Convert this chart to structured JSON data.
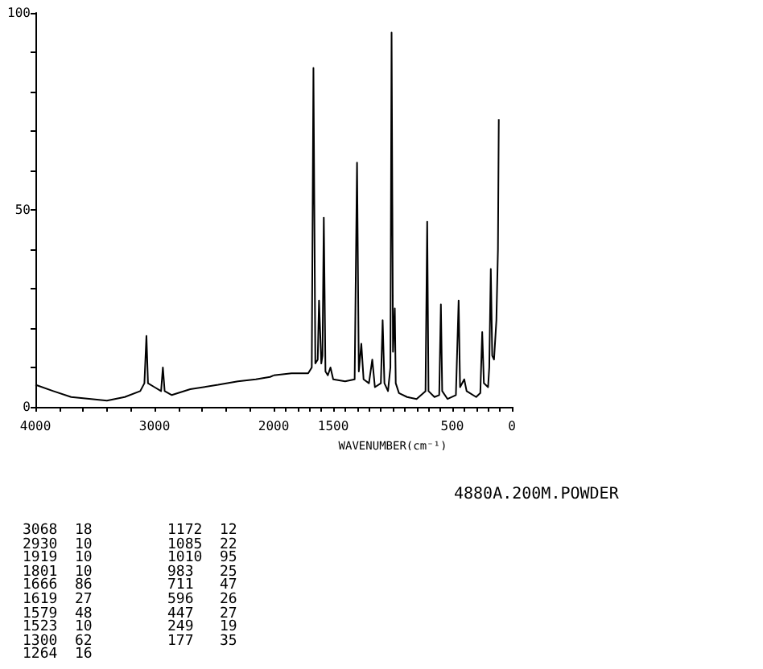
{
  "chart_data": [
    {
      "type": "line",
      "x": [
        4000,
        3850,
        3700,
        3532,
        3400,
        3250,
        3120,
        3085,
        3068,
        3055,
        3000,
        2945,
        2930,
        2915,
        2855,
        2700,
        2466,
        2300,
        2150,
        2030,
        2000
      ],
      "series": [
        {
          "color": "#000000",
          "values": [
            5.6,
            4,
            2.5,
            2,
            1.6,
            2.5,
            4,
            6,
            18,
            6,
            5,
            4,
            10,
            4,
            3,
            4.5,
            5.6,
            6.5,
            7,
            7.6,
            8
          ]
        }
      ],
      "xlim": [
        4000,
        2000
      ],
      "xticks": [
        4000,
        {
          "value": 3800,
          "label": null
        },
        {
          "value": 3600,
          "label": null
        },
        {
          "value": 3400,
          "label": null
        },
        {
          "value": 3200,
          "label": null
        },
        3000,
        {
          "value": 2800,
          "label": null
        },
        {
          "value": 2600,
          "label": null
        },
        {
          "value": 2400,
          "label": null
        },
        {
          "value": 2200,
          "label": null
        },
        2000
      ],
      "ylim": [
        0,
        100
      ],
      "yticks": [
        0,
        {
          "value": 10,
          "label": null
        },
        {
          "value": 20,
          "label": null
        },
        {
          "value": 30,
          "label": null
        },
        {
          "value": 40,
          "label": null
        },
        50,
        {
          "value": 60,
          "label": null
        },
        {
          "value": 70,
          "label": null
        },
        {
          "value": 80,
          "label": null
        },
        {
          "value": 90,
          "label": null
        },
        100
      ],
      "marker": "none",
      "grid": false,
      "annotations": [
        "4880A.200M.POWDER",
        "3068  18",
        "2930  10",
        "1919  10",
        "1801  10",
        "1666  86",
        "1619  27",
        "1579  48",
        "1523  10",
        "1300  62",
        "1264  16",
        "1172  12",
        "1085  22",
        "1010  95",
        "983   25",
        "711   47",
        "596   26",
        "447   27",
        "249   19",
        "177   35"
      ]
    },
    {
      "type": "line",
      "x": [
        2000,
        1850,
        1710,
        1680,
        1666,
        1650,
        1630,
        1619,
        1600,
        1590,
        1579,
        1565,
        1545,
        1523,
        1500,
        1400,
        1320,
        1300,
        1285,
        1264,
        1245,
        1200,
        1172,
        1150,
        1100,
        1085,
        1070,
        1040,
        1020,
        1010,
        998,
        983,
        975,
        948,
        880,
        800,
        725,
        711,
        700,
        650,
        610,
        596,
        585,
        540,
        470,
        447,
        435,
        400,
        380,
        300,
        265,
        249,
        235,
        200,
        190,
        177,
        165,
        150,
        130,
        117,
        110
      ],
      "series": [
        {
          "color": "#000000",
          "values": [
            8,
            8.5,
            8.5,
            10,
            86,
            11,
            12,
            27,
            11,
            13,
            48,
            9,
            8,
            10,
            7,
            6.5,
            7,
            62,
            9,
            16,
            7,
            6,
            12,
            5,
            6,
            22,
            6,
            4,
            10,
            95,
            14,
            25,
            6,
            3.5,
            2.5,
            2,
            4,
            47,
            4,
            2.5,
            3,
            26,
            4,
            2,
            3,
            27,
            5,
            7,
            4,
            2.5,
            3.5,
            19,
            6,
            5,
            10,
            35,
            13,
            12,
            22,
            40,
            73
          ]
        }
      ],
      "xlim": [
        2000,
        0
      ],
      "xticks": [
        {
          "value": 1900,
          "label": null
        },
        {
          "value": 1800,
          "label": null
        },
        {
          "value": 1700,
          "label": null
        },
        {
          "value": 1600,
          "label": null
        },
        1500,
        {
          "value": 1400,
          "label": null
        },
        {
          "value": 1300,
          "label": null
        },
        {
          "value": 1200,
          "label": null
        },
        {
          "value": 1100,
          "label": null
        },
        {
          "value": 1000,
          "label": null
        },
        {
          "value": 900,
          "label": null
        },
        {
          "value": 800,
          "label": null
        },
        {
          "value": 700,
          "label": null
        },
        {
          "value": 600,
          "label": null
        },
        500,
        {
          "value": 400,
          "label": null
        },
        {
          "value": 300,
          "label": null
        },
        {
          "value": 200,
          "label": null
        },
        {
          "value": 100,
          "label": null
        },
        0
      ],
      "ylim": [
        0,
        100
      ],
      "xlabel": "WAVENUMBER(cm⁻¹)",
      "tick_labels": "x",
      "marker": "none",
      "grid": false
    }
  ]
}
